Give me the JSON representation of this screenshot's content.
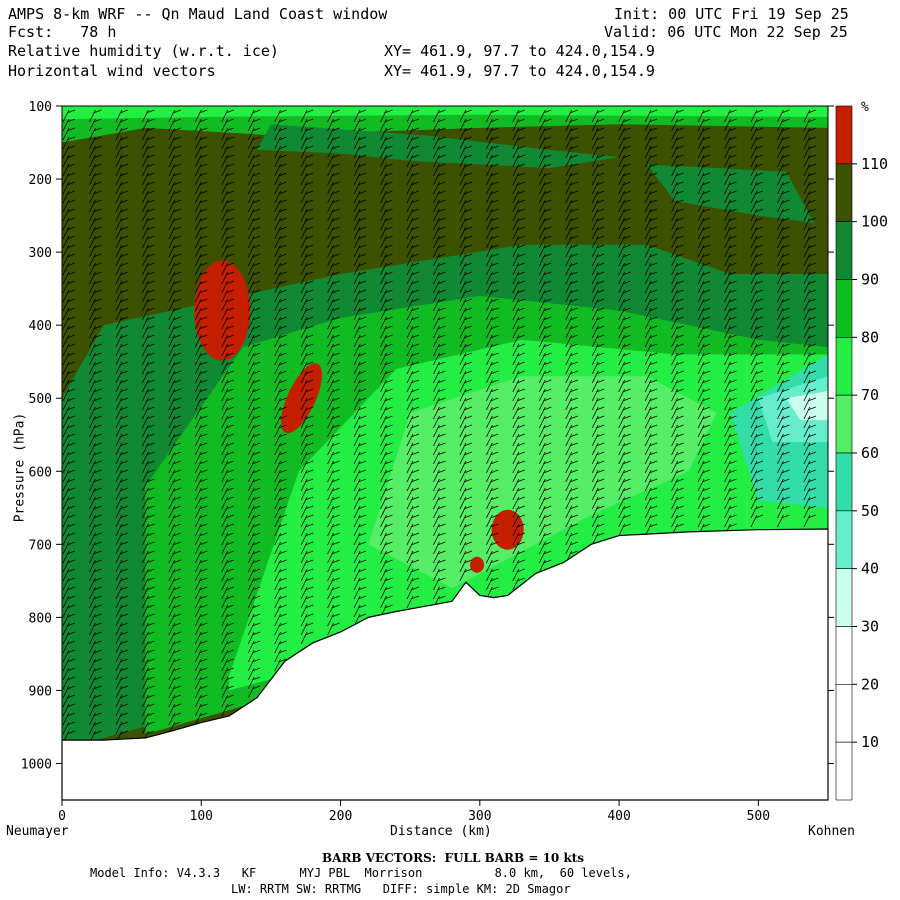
{
  "header": {
    "title": "AMPS 8-km WRF -- Qn Maud Land Coast window",
    "init": "Init: 00 UTC Fri 19 Sep 25",
    "fcst": "Fcst:   78 h",
    "valid": "Valid: 06 UTC Mon 22 Sep 25",
    "field1": "Relative humidity (w.r.t. ice)",
    "field2": "Horizontal wind vectors",
    "xy1": "XY= 461.9, 97.7 to 424.0,154.9",
    "xy2": "XY= 461.9, 97.7 to 424.0,154.9"
  },
  "footer": {
    "barb_note": "BARB VECTORS:  FULL BARB = 10 kts",
    "model_info": "Model Info: V4.3.3   KF      MYJ PBL  Morrison          8.0 km,  60 levels,",
    "model_info2": "LW: RRTM SW: RRTMG   DIFF: simple KM: 2D Smagor"
  },
  "chart_data": {
    "type": "heatmap",
    "title": "Relative humidity (w.r.t. ice)",
    "xlabel": "Distance (km)",
    "ylabel": "Pressure (hPa)",
    "xlim": [
      0,
      550
    ],
    "ylim": [
      1050,
      100
    ],
    "x_ticks": [
      0,
      100,
      200,
      300,
      400,
      500
    ],
    "x_tick_labels": [
      "0",
      "100",
      "200",
      "300",
      "400",
      "500"
    ],
    "y_ticks": [
      100,
      200,
      300,
      400,
      500,
      600,
      700,
      800,
      900,
      1000
    ],
    "y_tick_labels": [
      "100",
      "200",
      "300",
      "400",
      "500",
      "600",
      "700",
      "800",
      "900",
      "1000"
    ],
    "x_end_labels": {
      "left": "Neumayer",
      "right": "Kohnen"
    },
    "colorbar": {
      "unit": "%",
      "levels": [
        10,
        20,
        30,
        40,
        50,
        60,
        70,
        80,
        90,
        100,
        110
      ],
      "level_labels": [
        "10",
        "20",
        "30",
        "40",
        "50",
        "60",
        "70",
        "80",
        "90",
        "100",
        "110"
      ],
      "colors": [
        "#ffffff",
        "#ffffff",
        "#ffffff",
        "#ccffee",
        "#66eecc",
        "#33ddaa",
        "#55ee66",
        "#22ee44",
        "#11bb22",
        "#118833",
        "#3d5200",
        "#c42000"
      ]
    },
    "terrain_surface": {
      "x_km": [
        0,
        30,
        60,
        80,
        100,
        120,
        140,
        160,
        180,
        200,
        220,
        240,
        260,
        280,
        290,
        300,
        310,
        320,
        340,
        360,
        380,
        400,
        450,
        500,
        550
      ],
      "p_hpa": [
        968,
        968,
        965,
        955,
        944,
        935,
        910,
        860,
        835,
        820,
        800,
        792,
        785,
        778,
        752,
        770,
        773,
        770,
        740,
        725,
        700,
        688,
        683,
        680,
        679
      ]
    },
    "vectors": "horizontal wind barbs"
  }
}
